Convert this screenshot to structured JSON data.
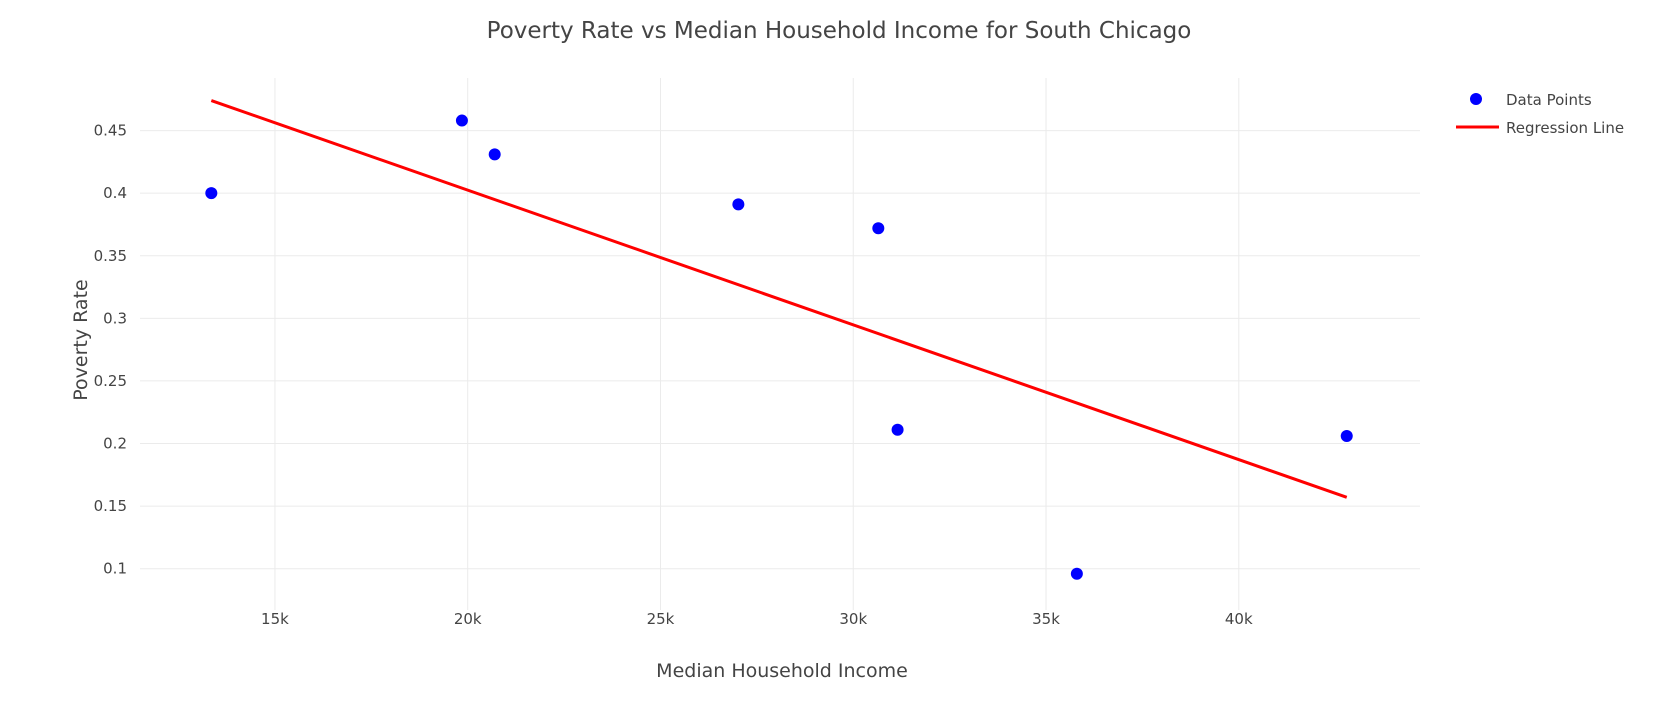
{
  "chart_data": {
    "type": "scatter",
    "title": "Poverty Rate vs Median Household Income for South Chicago",
    "xlabel": "Median Household Income",
    "ylabel": "Poverty Rate",
    "xlim": [
      11500,
      44700
    ],
    "ylim": [
      0.067,
      0.492
    ],
    "x_ticks": [
      {
        "value": 15000,
        "label": "15k"
      },
      {
        "value": 20000,
        "label": "20k"
      },
      {
        "value": 25000,
        "label": "25k"
      },
      {
        "value": 30000,
        "label": "30k"
      },
      {
        "value": 35000,
        "label": "35k"
      },
      {
        "value": 40000,
        "label": "40k"
      }
    ],
    "y_ticks": [
      {
        "value": 0.1,
        "label": "0.1"
      },
      {
        "value": 0.15,
        "label": "0.15"
      },
      {
        "value": 0.2,
        "label": "0.2"
      },
      {
        "value": 0.25,
        "label": "0.25"
      },
      {
        "value": 0.3,
        "label": "0.3"
      },
      {
        "value": 0.35,
        "label": "0.35"
      },
      {
        "value": 0.4,
        "label": "0.4"
      },
      {
        "value": 0.45,
        "label": "0.45"
      }
    ],
    "grid": true,
    "legend_position": "top-right",
    "series": [
      {
        "name": "Data Points",
        "mode": "markers",
        "color": "#0000ff",
        "x": [
          13350,
          19850,
          20700,
          27020,
          30650,
          31150,
          35800,
          42800
        ],
        "y": [
          0.4,
          0.458,
          0.431,
          0.391,
          0.372,
          0.211,
          0.096,
          0.206
        ]
      },
      {
        "name": "Regression Line",
        "mode": "lines",
        "color": "#ff0000",
        "x": [
          13350,
          42800
        ],
        "y": [
          0.474,
          0.157
        ]
      }
    ]
  }
}
